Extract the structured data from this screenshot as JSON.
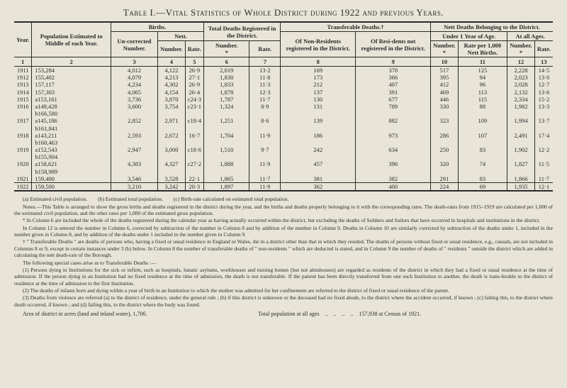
{
  "title": "Table I.—Vital Statistics of Whole District during 1922 and previous Years.",
  "headers": {
    "year": "Year.",
    "population": "Population Estimated to Middle of each Year.",
    "uncorrected": "Un-corrected Number.",
    "births": "Births.",
    "nett": "Nett.",
    "number": "Number.",
    "rate": "Rate.",
    "total_deaths": "Total Deaths Registered in the District.",
    "transferable": "Transferable Deaths.†",
    "non_res": "Of Non-Residents registered in the District.",
    "res_not": "Of Resi-dents not registered in the District.",
    "nett_deaths": "Nett Deaths Belonging to the District.",
    "under1": "Under 1 Year of Age.",
    "all_ages": "At all Ages.",
    "rate_per": "Rate per 1,000 Nett Births."
  },
  "colnums": [
    "1",
    "2",
    "3",
    "4",
    "5",
    "6",
    "7",
    "8",
    "9",
    "10",
    "11",
    "12",
    "13"
  ],
  "rows": [
    {
      "year": "1911",
      "pop": "153,284",
      "unc": "4,012",
      "bn": "4,122",
      "br": "26·9",
      "tdn": "2,019",
      "tdr": "13·2",
      "nr": "169",
      "rn": "378",
      "u1n": "517",
      "u1r": "125",
      "aan": "2,228",
      "aar": "14·5"
    },
    {
      "year": "1912",
      "pop": "155,402",
      "unc": "4,079",
      "bn": "4,213",
      "br": "27·1",
      "tdn": "1,830",
      "tdr": "11·8",
      "nr": "173",
      "rn": "366",
      "u1n": "395",
      "u1r": "94",
      "aan": "2,023",
      "aar": "13·0"
    },
    {
      "year": "1913",
      "pop": "157,117",
      "unc": "4,234",
      "bn": "4,302",
      "br": "26·9",
      "tdn": "1,833",
      "tdr": "11·3",
      "nr": "212",
      "rn": "407",
      "u1n": "412",
      "u1r": "96",
      "aan": "2,028",
      "aar": "12·7"
    },
    {
      "year": "1914",
      "pop": "157,303",
      "unc": "4,065",
      "bn": "4,154",
      "br": "26·4",
      "tdn": "1,878",
      "tdr": "12·3",
      "nr": "137",
      "rn": "391",
      "u1n": "469",
      "u1r": "113",
      "aan": "2,132",
      "aar": "13·6"
    },
    {
      "year": "1915",
      "pop": "a153,161",
      "unc": "3,736",
      "bn": "3,870",
      "br": "c24·3",
      "tdn": "1,787",
      "tdr": "11·7",
      "nr": "130",
      "rn": "677",
      "u1n": "446",
      "u1r": "115",
      "aan": "2,334",
      "aar": "15·2"
    },
    {
      "year": "1916",
      "pop": "a149,428",
      "unc": "3,600",
      "bn": "3,754",
      "br": "c23·1",
      "tdn": "1,324",
      "tdr": "8·9",
      "nr": "131",
      "rn": "789",
      "u1n": "330",
      "u1r": "88",
      "aan": "1,982",
      "aar": "13·3"
    },
    {
      "year": "",
      "pop": "b166,580",
      "unc": "",
      "bn": "",
      "br": "",
      "tdn": "",
      "tdr": "",
      "nr": "",
      "rn": "",
      "u1n": "",
      "u1r": "",
      "aan": "",
      "aar": ""
    },
    {
      "year": "1917",
      "pop": "a145,186",
      "unc": "2,852",
      "bn": "2,971",
      "br": "c18·4",
      "tdn": "1,251",
      "tdr": "8·6",
      "nr": "139",
      "rn": "882",
      "u1n": "323",
      "u1r": "109",
      "aan": "1,994",
      "aar": "13·7"
    },
    {
      "year": "",
      "pop": "b161,841",
      "unc": "",
      "bn": "",
      "br": "",
      "tdn": "",
      "tdr": "",
      "nr": "",
      "rn": "",
      "u1n": "",
      "u1r": "",
      "aan": "",
      "aar": ""
    },
    {
      "year": "1918",
      "pop": "a143,211",
      "unc": "2,593",
      "bn": "2,672",
      "br": "16·7",
      "tdn": "1,704",
      "tdr": "11·9",
      "nr": "186",
      "rn": "973",
      "u1n": "286",
      "u1r": "107",
      "aan": "2,491",
      "aar": "17·4"
    },
    {
      "year": "",
      "pop": "b160,463",
      "unc": "",
      "bn": "",
      "br": "",
      "tdn": "",
      "tdr": "",
      "nr": "",
      "rn": "",
      "u1n": "",
      "u1r": "",
      "aan": "",
      "aar": ""
    },
    {
      "year": "1919",
      "pop": "a152,543",
      "unc": "2,947",
      "bn": "3,000",
      "br": "c18·6",
      "tdn": "1,510",
      "tdr": "9·7",
      "nr": "242",
      "rn": "634",
      "u1n": "250",
      "u1r": "83",
      "aan": "1,902",
      "aar": "12·2"
    },
    {
      "year": "",
      "pop": "b155,904",
      "unc": "",
      "bn": "",
      "br": "",
      "tdn": "",
      "tdr": "",
      "nr": "",
      "rn": "",
      "u1n": "",
      "u1r": "",
      "aan": "",
      "aar": ""
    },
    {
      "year": "1920",
      "pop": "a158,621",
      "unc": "4,383",
      "bn": "4,327",
      "br": "c27·2",
      "tdn": "1,888",
      "tdr": "11·9",
      "nr": "457",
      "rn": "396",
      "u1n": "320",
      "u1r": "74",
      "aan": "1,827",
      "aar": "11·5"
    },
    {
      "year": "",
      "pop": "b158,989",
      "unc": "",
      "bn": "",
      "br": "",
      "tdn": "",
      "tdr": "",
      "nr": "",
      "rn": "",
      "u1n": "",
      "u1r": "",
      "aan": "",
      "aar": ""
    },
    {
      "year": "1921",
      "pop": "159,400",
      "unc": "3,546",
      "bn": "3,528",
      "br": "22·1",
      "tdn": "1,865",
      "tdr": "11·7",
      "nr": "381",
      "rn": "382",
      "u1n": "291",
      "u1r": "83",
      "aan": "1,866",
      "aar": "11·7"
    },
    {
      "year": "1922",
      "pop": "159,500",
      "unc": "3,210",
      "bn": "3,242",
      "br": "20·3",
      "tdn": "1,897",
      "tdr": "11·9",
      "nr": "362",
      "rn": "400",
      "u1n": "224",
      "u1r": "69",
      "aan": "1,935",
      "aar": "12·1",
      "last": true
    }
  ],
  "notes": {
    "abc": "(a) Estimated civil population.  (b) Estimated total population.  (c) Birth-rate calculated on estimated total population.",
    "n1": "Notes.—This Table is arranged to show the gross births and deaths registered in the district during the year, and the births and deaths properly belonging to it with the corresponding rates. The death-rates from 1915–1919 are calculated per 1,000 of the estimated civil population, and the other rates per 1,000 of the estimated gross population.",
    "n2": "* In Column 6 are included the whole of the deaths registered during the calendar year as having actually occurred within the district, but excluding the deaths of Soldiers and Sailors that have occurred in hospitals and institutions in the district.",
    "n3": "In Column 12 is entered the number in Column 6, corrected by subtraction of the number in Column 8 and by addition of the number in Column 9. Deaths in Column 10 are similarly corrected by subtraction of the deaths under 1, included in the number given in Column 8, and by addition of the deaths under 1 included in the number given in Column 9.",
    "n4": "† \" Transferable Deaths \" are deaths of persons who, having a fixed or usual residence in England or Wales, die in a district other than that in which they resided. The deaths of persons without fixed or usual residence, e.g., casuals, are not included in Columns 8 or 9, except in certain instances under 3 (b) below. In Column 8 the number of transferable deaths of \" non-residents \" which are deducted is stated, and in Column 9 the number of deaths of \" residents \" outside the district which are added in calculating the nett death-rate of the Borough.",
    "n5": "The following special cases arise as to Transferable Deaths :—",
    "n6": "(1) Persons dying in Institutions for the sick or infirm, such as hospitals, lunatic asylums, workhouses and nursing homes (but not almshouses) are regarded as residents of the district in which they had a fixed or usual residence at the time of admission. If the person dying in an Institution had no fixed residence at the time of admission, the death is not transferable. If the patient has been directly transferred from one such Institution to another, the death is trans-ferable to the district of residence at the time of admission to the first Institution.",
    "n7": "(2) The deaths of infants born and dying within a year of birth in an Institution to which the mother was admitted for her confinement are referred to the district of fixed or usual residence of the parent.",
    "n8": "(3) Deaths from violence are referred (a) to the district of residence, under the general rule ; (b) if this district is unknown or the deceased had no fixed abode, to the district where the accident occurred, if known ; (c) failing this, to the district where death occurred, if known ; and (d) failing this, to the district where the body was found.",
    "footer_left": "Area of district in acres (land and inland water), 1,706.",
    "footer_right": "Total population at all ages .. .. .. .. 157,938 at Census of 1921."
  }
}
